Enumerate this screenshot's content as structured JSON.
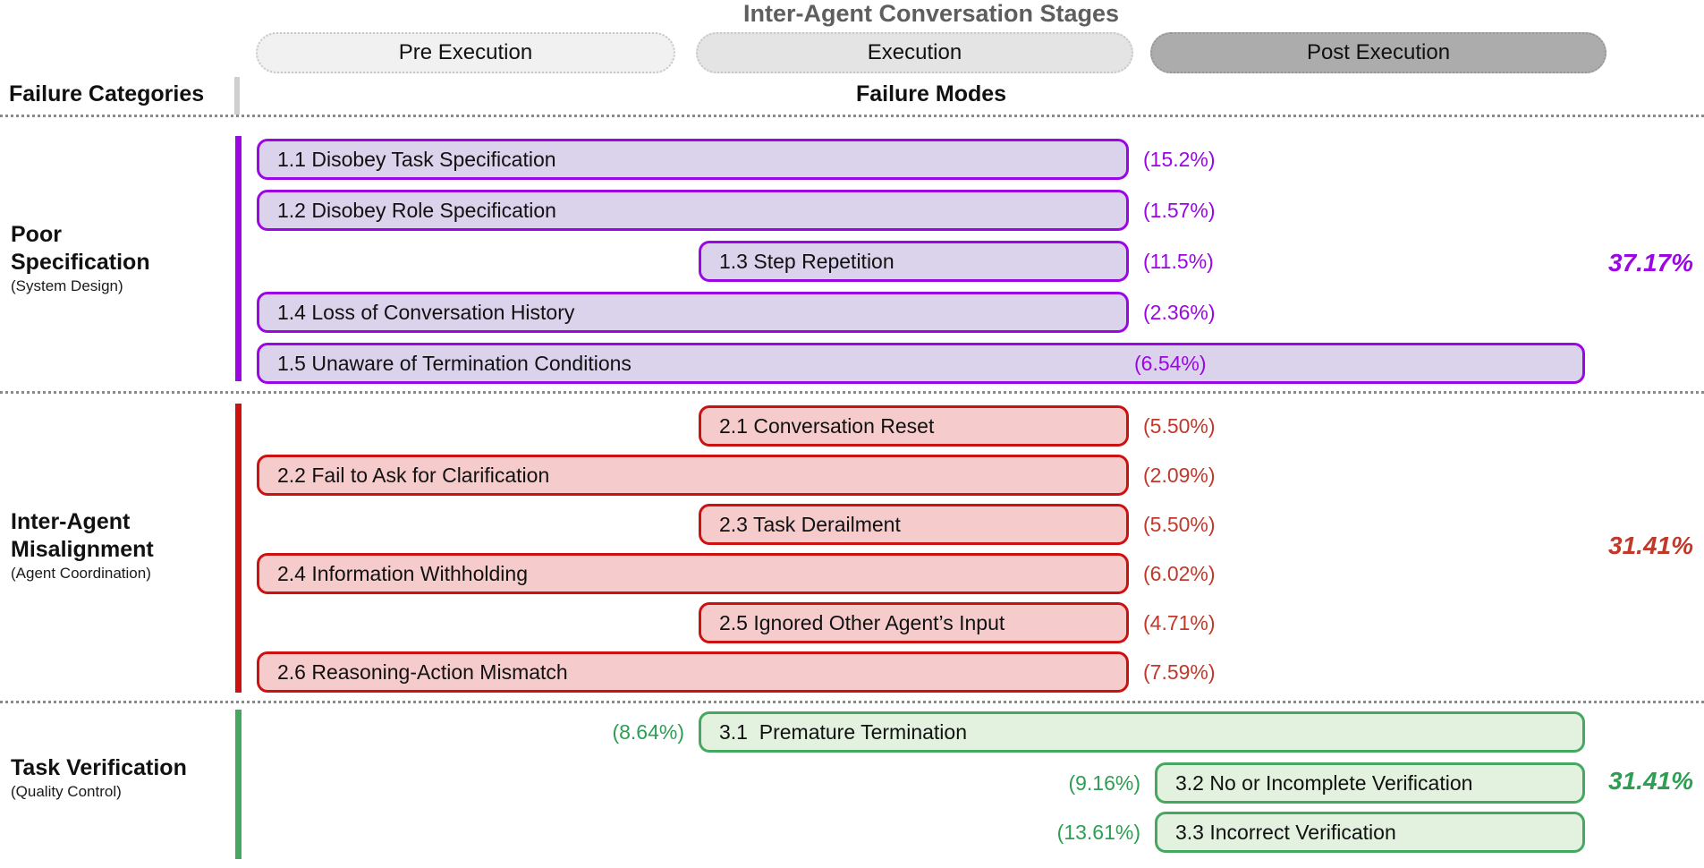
{
  "title": "Inter-Agent Conversation Stages",
  "headers": {
    "categories": "Failure Categories",
    "modes": "Failure Modes"
  },
  "stages": [
    {
      "label": "Pre Execution"
    },
    {
      "label": "Execution"
    },
    {
      "label": "Post Execution"
    }
  ],
  "colors": {
    "title_gray": "#5e5e5e",
    "stage_fills": [
      "#f1f1f1",
      "#e4e4e4",
      "#acacac"
    ],
    "stage_borders": [
      "#c8c8c8",
      "#c8c8c8",
      "#979797"
    ],
    "purple_border": "#9b07e3",
    "purple_fill": "#dbd3ec",
    "purple_text": "#9b07e3",
    "red_border": "#cc1111",
    "red_fill": "#f5cccb",
    "red_text": "#c0392b",
    "green_border": "#46a860",
    "green_fill": "#e3f1df",
    "green_text": "#2e9e53"
  },
  "categories": [
    {
      "id": "poor-specification",
      "name_lines": [
        "Poor",
        "Specification"
      ],
      "subtitle": "(System Design)",
      "total": "37.17%",
      "modes": [
        {
          "id": "1.1",
          "label": "1.1 Disobey Task Specification",
          "pct": "(15.2%)"
        },
        {
          "id": "1.2",
          "label": "1.2 Disobey Role Specification",
          "pct": "(1.57%)"
        },
        {
          "id": "1.3",
          "label": "1.3 Step Repetition",
          "pct": "(11.5%)"
        },
        {
          "id": "1.4",
          "label": "1.4 Loss of Conversation History",
          "pct": "(2.36%)"
        },
        {
          "id": "1.5",
          "label": "1.5 Unaware of Termination Conditions",
          "pct": "(6.54%)"
        }
      ]
    },
    {
      "id": "inter-agent-misalignment",
      "name_lines": [
        "Inter-Agent",
        "Misalignment"
      ],
      "subtitle": "(Agent Coordination)",
      "total": "31.41%",
      "modes": [
        {
          "id": "2.1",
          "label": "2.1 Conversation Reset",
          "pct": "(5.50%)"
        },
        {
          "id": "2.2",
          "label": "2.2 Fail to Ask for Clarification",
          "pct": "(2.09%)"
        },
        {
          "id": "2.3",
          "label": "2.3 Task Derailment",
          "pct": "(5.50%)"
        },
        {
          "id": "2.4",
          "label": "2.4 Information Withholding",
          "pct": "(6.02%)"
        },
        {
          "id": "2.5",
          "label": "2.5 Ignored Other Agent’s Input",
          "pct": "(4.71%)"
        },
        {
          "id": "2.6",
          "label": "2.6 Reasoning-Action Mismatch",
          "pct": "(7.59%)"
        }
      ]
    },
    {
      "id": "task-verification",
      "name_lines": [
        "Task Verification"
      ],
      "subtitle": "(Quality Control)",
      "total": "31.41%",
      "modes": [
        {
          "id": "3.1",
          "label": "3.1  Premature Termination",
          "pct": "(8.64%)"
        },
        {
          "id": "3.2",
          "label": "3.2 No or Incomplete Verification",
          "pct": "(9.16%)"
        },
        {
          "id": "3.3",
          "label": "3.3 Incorrect Verification",
          "pct": "(13.61%)"
        }
      ]
    }
  ]
}
